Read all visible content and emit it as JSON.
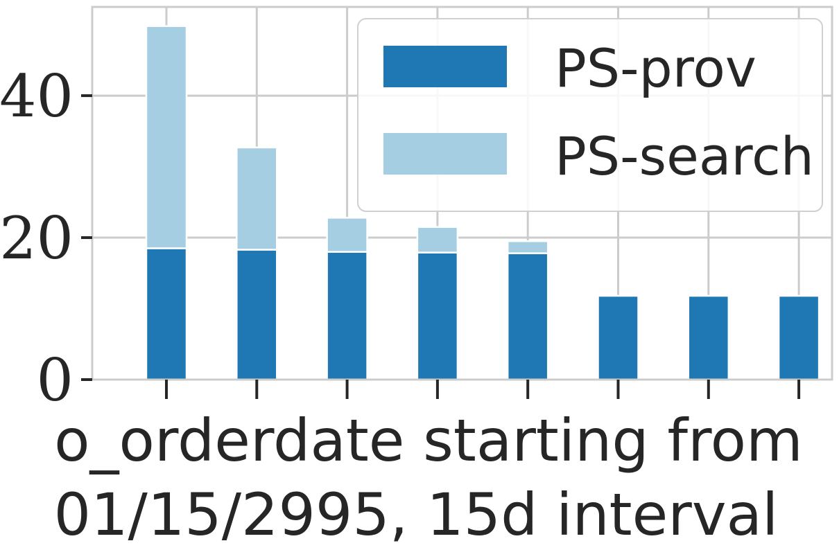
{
  "chart_data": {
    "type": "bar",
    "stacked": true,
    "categories": [
      "",
      "",
      "",
      "",
      "",
      "",
      "",
      ""
    ],
    "series": [
      {
        "name": "PS-prov",
        "values": [
          18.5,
          18.3,
          18.0,
          17.9,
          17.8,
          11.8,
          11.8,
          11.8
        ],
        "color": "#1f77b4"
      },
      {
        "name": "PS-search",
        "values": [
          31.3,
          14.4,
          4.8,
          3.6,
          1.7,
          0,
          0,
          0
        ],
        "color": "#a6cee3"
      }
    ],
    "ylim": [
      0,
      52.5
    ],
    "yticks": [
      0,
      20,
      40
    ],
    "ytick_labels": [
      "0",
      "20",
      "40"
    ],
    "xlabel_line1": "o_orderdate starting from",
    "xlabel_line2": "01/15/2995, 15d interval",
    "grid": true,
    "legend_position": "top-right"
  }
}
